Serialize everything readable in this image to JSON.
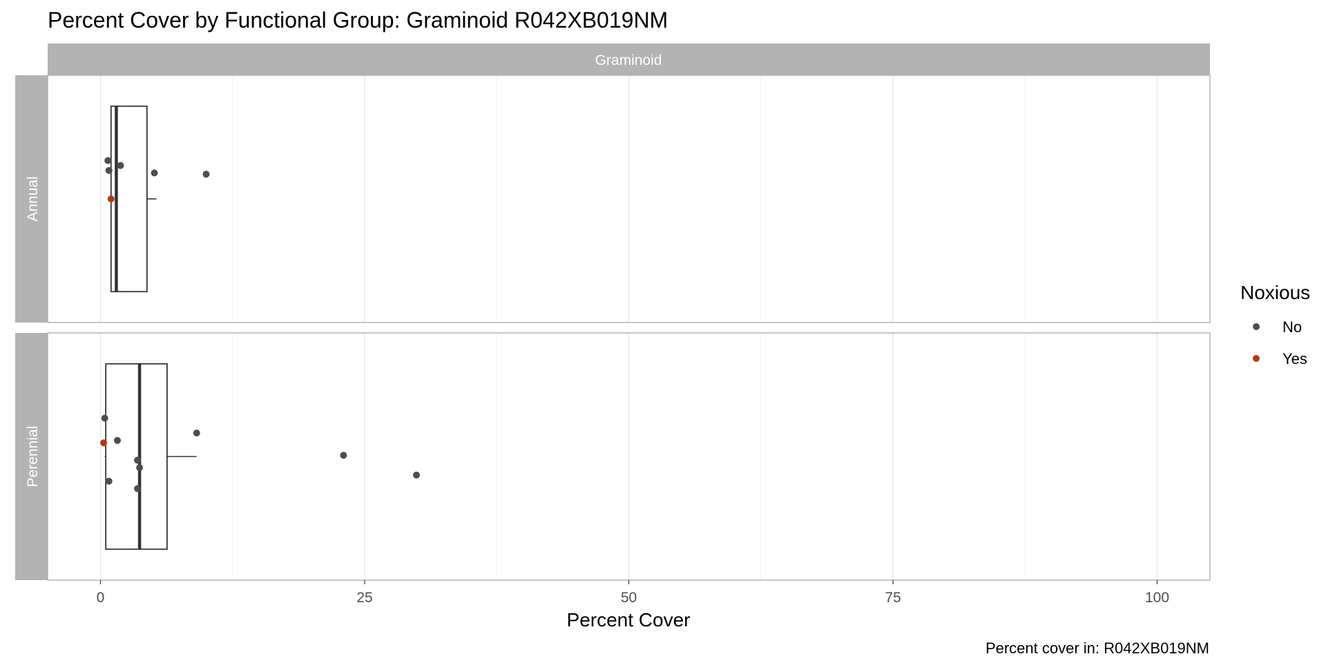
{
  "chart_data": {
    "type": "boxplot",
    "title": "Percent Cover by Functional Group: Graminoid R042XB019NM",
    "facet_column": "Graminoid",
    "facet_rows": [
      "Annual",
      "Perennial"
    ],
    "xlabel": "Percent Cover",
    "xlim": [
      -5,
      105
    ],
    "xticks": [
      0,
      25,
      50,
      75,
      100
    ],
    "grid": true,
    "legend": {
      "title": "Noxious",
      "position": "right",
      "entries": [
        {
          "label": "No",
          "color": "#4d4d4d"
        },
        {
          "label": "Yes",
          "color": "#b03a10"
        }
      ]
    },
    "caption": "Percent cover in:  R042XB019NM",
    "panels": [
      {
        "name": "Annual",
        "box": {
          "whisker_low": 1.0,
          "q1": 1.0,
          "median": 1.5,
          "q3": 4.4,
          "whisker_high": 5.3
        },
        "points": [
          {
            "x": 0.7,
            "noxious": "No"
          },
          {
            "x": 0.8,
            "noxious": "No"
          },
          {
            "x": 1.9,
            "noxious": "No"
          },
          {
            "x": 5.1,
            "noxious": "No"
          },
          {
            "x": 10.0,
            "noxious": "No"
          },
          {
            "x": 1.0,
            "noxious": "Yes"
          }
        ]
      },
      {
        "name": "Perennial",
        "box": {
          "whisker_low": 0.4,
          "q1": 0.5,
          "median": 3.7,
          "q3": 6.3,
          "whisker_high": 9.1
        },
        "points": [
          {
            "x": 0.4,
            "noxious": "No"
          },
          {
            "x": 1.6,
            "noxious": "No"
          },
          {
            "x": 0.8,
            "noxious": "No"
          },
          {
            "x": 3.5,
            "noxious": "No"
          },
          {
            "x": 3.7,
            "noxious": "No"
          },
          {
            "x": 3.5,
            "noxious": "No"
          },
          {
            "x": 9.1,
            "noxious": "No"
          },
          {
            "x": 23.0,
            "noxious": "No"
          },
          {
            "x": 29.9,
            "noxious": "No"
          },
          {
            "x": 0.3,
            "noxious": "Yes"
          }
        ]
      }
    ]
  }
}
